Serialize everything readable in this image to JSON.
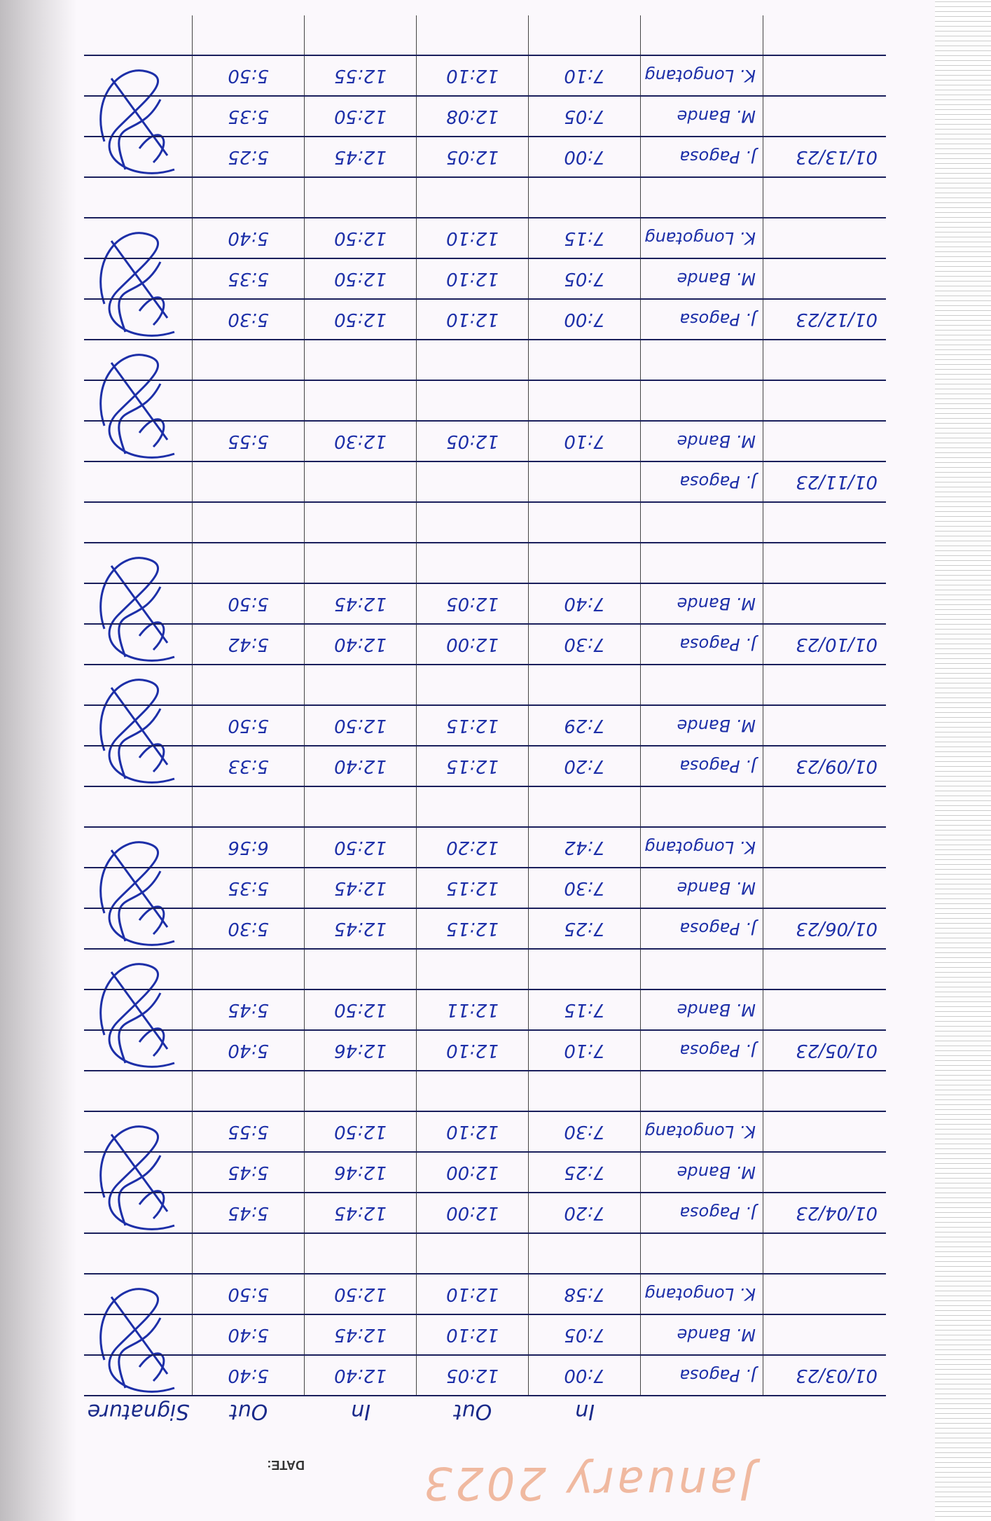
{
  "title": "January 2023",
  "date_label": "DATE:",
  "headers": [
    "",
    "",
    "In",
    "Out",
    "In",
    "Out",
    "Signature"
  ],
  "ink_color": "#1d2fa8",
  "rows": [
    {
      "date": "01/03/23",
      "name": "J. Pagosa",
      "in1": "7:00",
      "out1": "12:05",
      "in2": "12:40",
      "out2": "5:40",
      "sig": true
    },
    {
      "date": "",
      "name": "M. Bande",
      "in1": "7:05",
      "out1": "12:10",
      "in2": "12:45",
      "out2": "5:40"
    },
    {
      "date": "",
      "name": "K. Longotang",
      "in1": "7:58",
      "out1": "12:10",
      "in2": "12:50",
      "out2": "5:50"
    },
    {
      "date": "",
      "name": "",
      "in1": "",
      "out1": "",
      "in2": "",
      "out2": ""
    },
    {
      "date": "01/04/23",
      "name": "J. Pagosa",
      "in1": "7:20",
      "out1": "12:00",
      "in2": "12:45",
      "out2": "5:45",
      "sig": true
    },
    {
      "date": "",
      "name": "M. Bande",
      "in1": "7:25",
      "out1": "12:00",
      "in2": "12:46",
      "out2": "5:45"
    },
    {
      "date": "",
      "name": "K. Longotang",
      "in1": "7:30",
      "out1": "12:10",
      "in2": "12:50",
      "out2": "5:55"
    },
    {
      "date": "",
      "name": "",
      "in1": "",
      "out1": "",
      "in2": "",
      "out2": ""
    },
    {
      "date": "01/05/23",
      "name": "J. Pagosa",
      "in1": "7:10",
      "out1": "12:10",
      "in2": "12:46",
      "out2": "5:40",
      "sig": true
    },
    {
      "date": "",
      "name": "M. Bande",
      "in1": "7:15",
      "out1": "12:11",
      "in2": "12:50",
      "out2": "5:45"
    },
    {
      "date": "",
      "name": "",
      "in1": "",
      "out1": "",
      "in2": "",
      "out2": ""
    },
    {
      "date": "01/06/23",
      "name": "J. Pagosa",
      "in1": "7:25",
      "out1": "12:15",
      "in2": "12:45",
      "out2": "5:30",
      "sig": true
    },
    {
      "date": "",
      "name": "M. Bande",
      "in1": "7:30",
      "out1": "12:15",
      "in2": "12:45",
      "out2": "5:35"
    },
    {
      "date": "",
      "name": "K. Longotang",
      "in1": "7:42",
      "out1": "12:20",
      "in2": "12:50",
      "out2": "6:56"
    },
    {
      "date": "",
      "name": "",
      "in1": "",
      "out1": "",
      "in2": "",
      "out2": ""
    },
    {
      "date": "01/09/23",
      "name": "J. Pagosa",
      "in1": "7:20",
      "out1": "12:15",
      "in2": "12:40",
      "out2": "5:33",
      "sig": true
    },
    {
      "date": "",
      "name": "M. Bande",
      "in1": "7:29",
      "out1": "12:15",
      "in2": "12:50",
      "out2": "5:50"
    },
    {
      "date": "",
      "name": "",
      "in1": "",
      "out1": "",
      "in2": "",
      "out2": ""
    },
    {
      "date": "01/10/23",
      "name": "J. Pagosa",
      "in1": "7:30",
      "out1": "12:00",
      "in2": "12:40",
      "out2": "5:42",
      "sig": true
    },
    {
      "date": "",
      "name": "M. Bande",
      "in1": "7:40",
      "out1": "12:05",
      "in2": "12:45",
      "out2": "5:50"
    },
    {
      "date": "",
      "name": "",
      "in1": "",
      "out1": "",
      "in2": "",
      "out2": ""
    },
    {
      "date": "",
      "name": "",
      "in1": "",
      "out1": "",
      "in2": "",
      "out2": ""
    },
    {
      "date": "01/11/23",
      "name": "J. Pagosa",
      "in1": "",
      "out1": "",
      "in2": "",
      "out2": ""
    },
    {
      "date": "",
      "name": "M. Bande",
      "in1": "7:10",
      "out1": "12:05",
      "in2": "12:30",
      "out2": "5:55",
      "sig": true
    },
    {
      "date": "",
      "name": "",
      "in1": "",
      "out1": "",
      "in2": "",
      "out2": ""
    },
    {
      "date": "",
      "name": "",
      "in1": "",
      "out1": "",
      "in2": "",
      "out2": ""
    },
    {
      "date": "01/12/23",
      "name": "J. Pagosa",
      "in1": "7:00",
      "out1": "12:10",
      "in2": "12:50",
      "out2": "5:30",
      "sig": true
    },
    {
      "date": "",
      "name": "M. Bande",
      "in1": "7:05",
      "out1": "12:10",
      "in2": "12:50",
      "out2": "5:35"
    },
    {
      "date": "",
      "name": "K. Longotang",
      "in1": "7:15",
      "out1": "12:10",
      "in2": "12:50",
      "out2": "5:40"
    },
    {
      "date": "",
      "name": "",
      "in1": "",
      "out1": "",
      "in2": "",
      "out2": ""
    },
    {
      "date": "01/13/23",
      "name": "J. Pagosa",
      "in1": "7:00",
      "out1": "12:05",
      "in2": "12:45",
      "out2": "5:25",
      "sig": true
    },
    {
      "date": "",
      "name": "M. Bande",
      "in1": "7:05",
      "out1": "12:08",
      "in2": "12:50",
      "out2": "5:35"
    },
    {
      "date": "",
      "name": "K. Longotang",
      "in1": "7:10",
      "out1": "12:10",
      "in2": "12:55",
      "out2": "5:50"
    },
    {
      "date": "",
      "name": "",
      "in1": "",
      "out1": "",
      "in2": "",
      "out2": ""
    }
  ]
}
